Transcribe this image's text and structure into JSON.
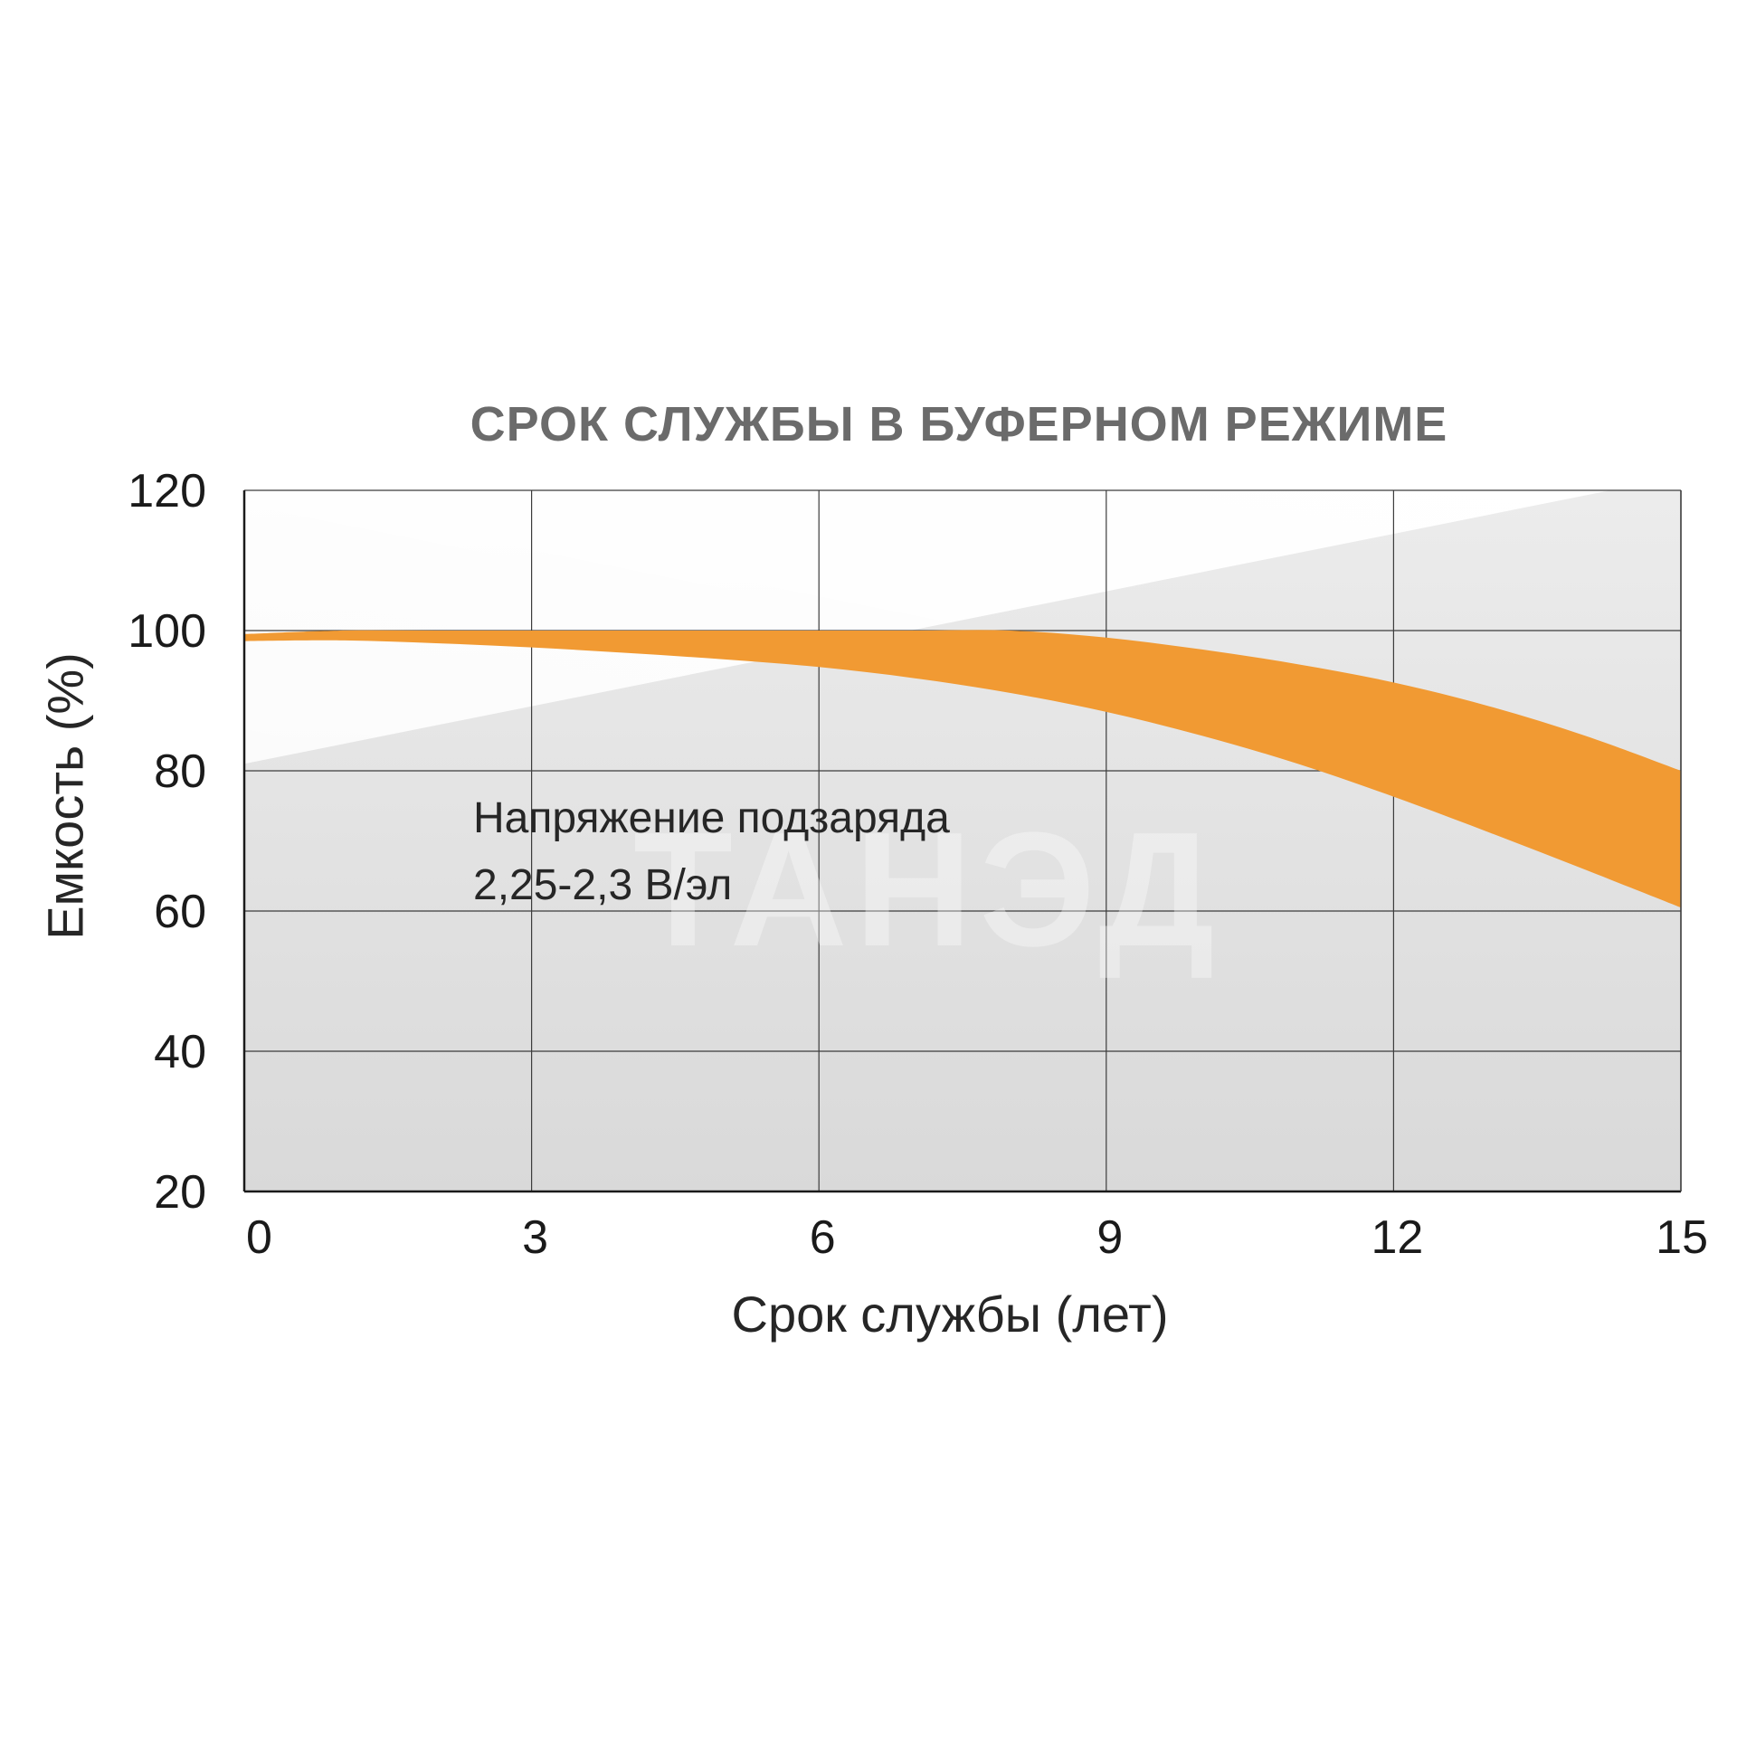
{
  "chart_data": {
    "type": "area",
    "title": "СРОК СЛУЖБЫ В БУФЕРНОМ РЕЖИМЕ",
    "xlabel": "Срок службы (лет)",
    "ylabel": "Емкость (%)",
    "xlim": [
      0,
      15
    ],
    "ylim": [
      20,
      120
    ],
    "xticks": [
      0,
      3,
      6,
      9,
      12,
      15
    ],
    "yticks": [
      20,
      40,
      60,
      80,
      100,
      120
    ],
    "grid": true,
    "annotation": [
      "Напряжение подзаряда",
      "2,25-2,3 В/эл"
    ],
    "watermark": "ТАНЭД",
    "band_color": "#f19a33",
    "series": [
      {
        "role": "upper",
        "x": [
          0,
          1,
          2,
          3,
          4,
          5,
          6,
          7,
          8,
          9,
          10,
          11,
          12,
          13,
          14,
          15
        ],
        "y": [
          99.5,
          100,
          100,
          100,
          100,
          100,
          100,
          100,
          100,
          99,
          97.3,
          95.2,
          92.6,
          89.2,
          85,
          80
        ]
      },
      {
        "role": "lower",
        "x": [
          0,
          1,
          2,
          3,
          4,
          5,
          6,
          7,
          8,
          9,
          10,
          11,
          12,
          13,
          14,
          15
        ],
        "y": [
          98.5,
          98.6,
          98.2,
          97.6,
          96.8,
          95.9,
          94.8,
          93.2,
          91.1,
          88.4,
          85,
          81,
          76.3,
          71.2,
          65.9,
          60.5
        ]
      }
    ]
  }
}
